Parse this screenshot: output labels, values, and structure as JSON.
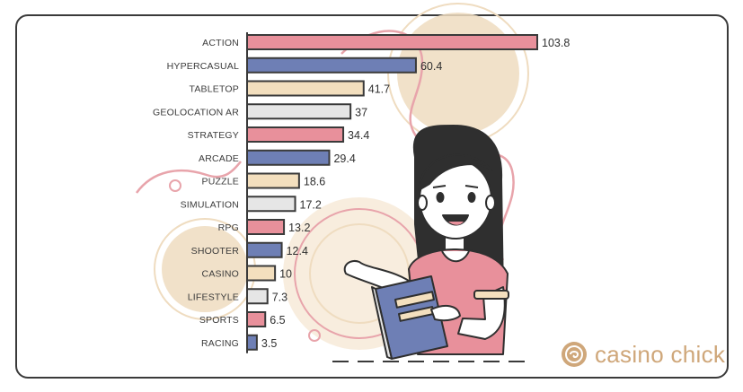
{
  "brand": {
    "name": "casino chick",
    "color": "#cfa77a",
    "icon": "casino-chip-icon"
  },
  "colors": {
    "pink": "#e8909b",
    "blue": "#6e7fb5",
    "cream": "#f3dfbe",
    "grey": "#e6e6e6",
    "outline": "#3a3a3a",
    "decor_pink": "#e8a4ab",
    "decor_beige": "#efdcc0"
  },
  "chart_data": {
    "type": "bar",
    "orientation": "horizontal",
    "title": "",
    "xlabel": "",
    "ylabel": "",
    "xlim": [
      0,
      110
    ],
    "grid": false,
    "legend": "none",
    "categories": [
      "ACTION",
      "HYPERCASUAL",
      "TABLETOP",
      "GEOLOCATION AR",
      "STRATEGY",
      "ARCADE",
      "PUZZLE",
      "SIMULATION",
      "RPG",
      "SHOOTER",
      "CASINO",
      "LIFESTYLE",
      "SPORTS",
      "RACING"
    ],
    "values": [
      103.8,
      60.4,
      41.7,
      37,
      34.4,
      29.4,
      18.6,
      17.2,
      13.2,
      12.4,
      10,
      7.3,
      6.5,
      3.5
    ],
    "value_labels": [
      "103.8",
      "60.4",
      "41.7",
      "37",
      "34.4",
      "29.4",
      "18.6",
      "17.2",
      "13.2",
      "12.4",
      "10",
      "7.3",
      "6.5",
      "3.5"
    ],
    "bar_colors": [
      "pink",
      "blue",
      "cream",
      "grey",
      "pink",
      "blue",
      "cream",
      "grey",
      "pink",
      "blue",
      "cream",
      "grey",
      "pink",
      "blue"
    ]
  }
}
